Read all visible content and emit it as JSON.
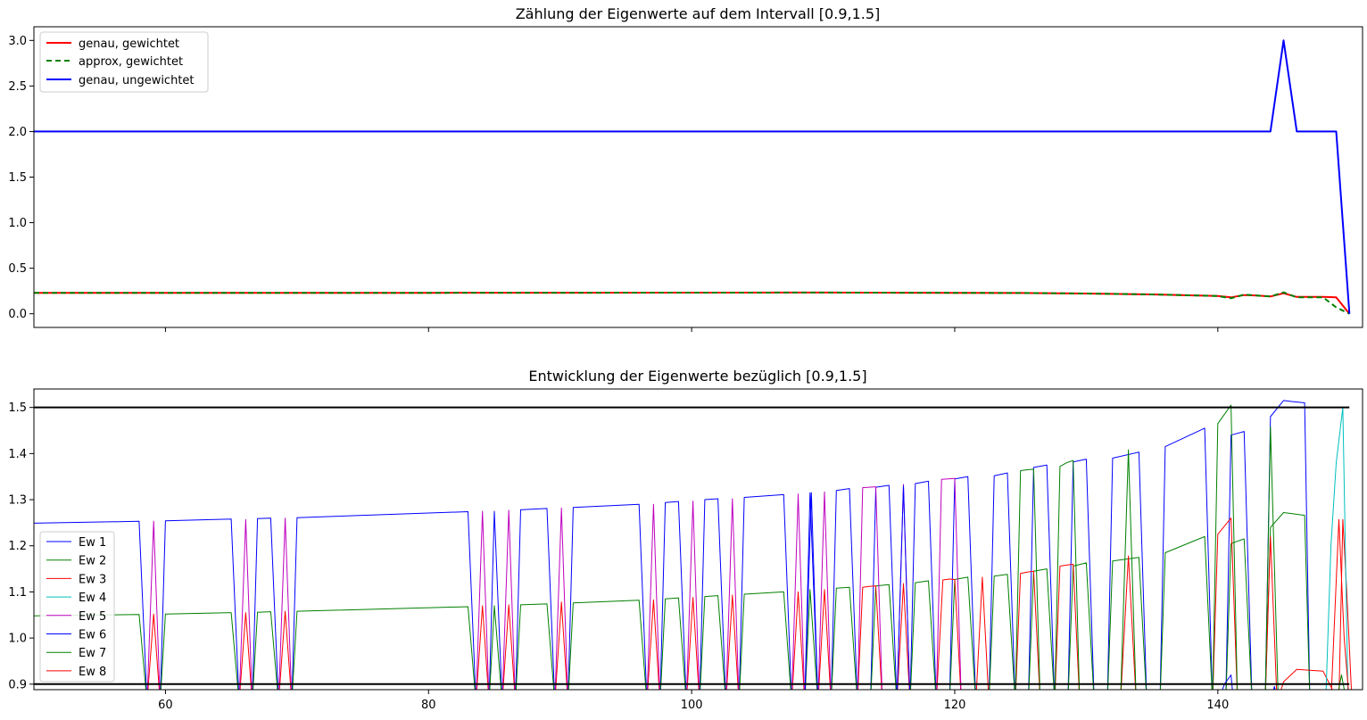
{
  "chart_data": [
    {
      "type": "line",
      "title": "Zählung der Eigenwerte auf dem Intervall [0.9,1.5]",
      "xlim": [
        50,
        151
      ],
      "ylim": [
        -0.15,
        3.15
      ],
      "yticks": [
        "0.0",
        "0.5",
        "1.0",
        "1.5",
        "2.0",
        "2.5",
        "3.0"
      ],
      "ytick_values": [
        0.0,
        0.5,
        1.0,
        1.5,
        2.0,
        2.5,
        3.0
      ],
      "x_tick_values": [
        60,
        80,
        100,
        120,
        140
      ],
      "show_x_labels": false,
      "legend": "top-left",
      "series": [
        {
          "name": "genau, gewichtet",
          "color": "#ff0000",
          "dash": "",
          "x": [
            50,
            60,
            80,
            100,
            110,
            120,
            125,
            130,
            135,
            140,
            141,
            142,
            143,
            144,
            145,
            146,
            147,
            148,
            149,
            150
          ],
          "y": [
            0.23,
            0.23,
            0.23,
            0.232,
            0.233,
            0.23,
            0.228,
            0.222,
            0.212,
            0.195,
            0.18,
            0.205,
            0.2,
            0.19,
            0.225,
            0.185,
            0.185,
            0.185,
            0.18,
            0.0
          ]
        },
        {
          "name": "approx, gewichtet",
          "color": "#008000",
          "dash": "6,4",
          "x": [
            50,
            60,
            80,
            100,
            110,
            120,
            125,
            130,
            135,
            140,
            141,
            142,
            143,
            144,
            145,
            146,
            147,
            148,
            149,
            150
          ],
          "y": [
            0.23,
            0.23,
            0.23,
            0.232,
            0.233,
            0.23,
            0.228,
            0.222,
            0.212,
            0.195,
            0.17,
            0.21,
            0.2,
            0.19,
            0.235,
            0.18,
            0.18,
            0.18,
            0.07,
            0.0
          ]
        },
        {
          "name": "genau, ungewichtet",
          "color": "#0000ff",
          "dash": "",
          "x": [
            50,
            144,
            145,
            146,
            149,
            150
          ],
          "y": [
            2.0,
            2.0,
            3.0,
            2.0,
            2.0,
            0.0
          ]
        }
      ]
    },
    {
      "type": "line",
      "title": "Entwicklung der Eigenwerte bezüglich [0.9,1.5]",
      "xlim": [
        50,
        151
      ],
      "ylim": [
        0.888,
        1.54
      ],
      "yticks": [
        "0.9",
        "1.0",
        "1.1",
        "1.2",
        "1.3",
        "1.4",
        "1.5"
      ],
      "ytick_values": [
        0.9,
        1.0,
        1.1,
        1.2,
        1.3,
        1.4,
        1.5
      ],
      "x_tick_values": [
        60,
        80,
        100,
        120,
        140
      ],
      "xticks": [
        "60",
        "80",
        "100",
        "120",
        "140"
      ],
      "show_x_labels": true,
      "legend": "bottom-left",
      "hlines": [
        0.9,
        1.5
      ],
      "series": [
        {
          "name": "Ew 1",
          "color": "#0000ff"
        },
        {
          "name": "Ew 2",
          "color": "#008000"
        },
        {
          "name": "Ew 3",
          "color": "#ff0000"
        },
        {
          "name": "Ew 4",
          "color": "#00bfbf"
        },
        {
          "name": "Ew 5",
          "color": "#bf00bf"
        },
        {
          "name": "Ew 6",
          "color": "#0000ff"
        },
        {
          "name": "Ew 7",
          "color": "#008000"
        },
        {
          "name": "Ew 8",
          "color": "#ff0000"
        }
      ],
      "trace_series": [
        {
          "color": "#0000ff",
          "x": [
            50,
            58,
            58.6,
            59.6,
            60,
            65,
            65.6,
            66.6,
            67,
            68,
            68.6,
            69.6,
            70,
            83,
            83.6,
            84.6,
            85,
            85.6,
            86.6,
            87,
            89,
            89.6,
            90.6,
            91,
            96,
            96.6,
            97.6,
            98,
            99,
            99.6,
            100.6,
            101,
            102,
            102.6,
            103.6,
            104,
            107,
            107.6,
            108.6,
            109,
            109.6,
            110.6,
            111,
            112,
            112.6,
            113.6,
            114,
            115,
            115.6,
            116.6,
            117,
            118,
            118.6,
            119.6,
            120,
            121,
            121.6,
            122.6,
            123,
            124,
            124.6,
            125.6,
            126,
            127,
            127.6,
            128.6,
            129,
            130,
            130.6,
            131.6,
            132,
            134,
            134.6,
            135.6,
            136,
            139,
            139.6,
            140.6,
            141,
            142,
            142.6,
            143.6,
            144,
            145,
            145.6,
            146.6,
            147,
            149,
            149.6
          ],
          "y": [
            1.249,
            1.253,
            0.86,
            0.86,
            1.254,
            1.258,
            0.86,
            0.86,
            1.259,
            1.26,
            0.86,
            0.86,
            1.261,
            1.274,
            0.86,
            0.86,
            1.275,
            0.86,
            0.86,
            1.278,
            1.281,
            0.86,
            0.86,
            1.283,
            1.29,
            0.86,
            0.86,
            1.294,
            1.296,
            0.86,
            0.86,
            1.3,
            1.302,
            0.86,
            0.86,
            1.305,
            1.311,
            0.86,
            0.86,
            1.315,
            0.86,
            0.86,
            1.32,
            1.324,
            0.86,
            0.86,
            1.327,
            1.331,
            0.86,
            0.86,
            1.335,
            1.34,
            0.86,
            0.86,
            1.345,
            1.35,
            0.86,
            0.86,
            1.352,
            1.358,
            0.86,
            0.86,
            1.37,
            1.375,
            0.86,
            0.86,
            1.382,
            1.388,
            0.86,
            0.86,
            1.39,
            1.403,
            0.86,
            0.86,
            1.415,
            1.455,
            0.86,
            0.86,
            1.44,
            1.448,
            0.86,
            0.86,
            1.48,
            1.515,
            1.513,
            1.51,
            0.86,
            0.86,
            0.86
          ]
        },
        {
          "color": "#008000",
          "x": [
            50,
            58,
            58.6,
            59.6,
            60,
            65,
            65.6,
            66.6,
            67,
            68,
            68.6,
            69.6,
            70,
            83,
            83.6,
            84.6,
            85,
            85.6,
            86.6,
            87,
            89,
            89.6,
            90.6,
            91,
            96,
            96.6,
            97.6,
            98,
            99,
            99.6,
            100.6,
            101,
            102,
            102.6,
            103.6,
            104,
            107,
            107.6,
            108.6,
            109,
            109.6,
            110.6,
            111,
            112,
            112.6,
            113.6,
            114,
            115,
            115.6,
            116.6,
            117,
            118,
            118.6,
            119.6,
            120,
            121,
            121.6,
            122.6,
            123,
            124,
            124.6,
            125.6,
            126,
            127,
            127.6,
            128.6,
            129,
            130,
            130.6,
            131.6,
            132,
            134,
            134.6,
            135.6,
            136,
            139,
            139.6,
            140.6,
            141,
            142,
            142.6,
            143.6,
            144,
            145,
            145.6,
            146.6,
            147,
            149,
            149.6
          ],
          "y": [
            1.048,
            1.051,
            0.86,
            0.86,
            1.052,
            1.055,
            0.86,
            0.86,
            1.056,
            1.057,
            0.86,
            0.86,
            1.058,
            1.068,
            0.86,
            0.86,
            1.07,
            0.86,
            0.86,
            1.072,
            1.074,
            0.86,
            0.86,
            1.076,
            1.082,
            0.86,
            0.86,
            1.085,
            1.087,
            0.86,
            0.86,
            1.09,
            1.092,
            0.86,
            0.86,
            1.095,
            1.1,
            0.86,
            0.86,
            1.105,
            0.86,
            0.86,
            1.108,
            1.11,
            0.86,
            0.86,
            1.113,
            1.116,
            0.86,
            0.86,
            1.12,
            1.124,
            0.86,
            0.86,
            1.127,
            1.132,
            0.86,
            0.86,
            1.134,
            1.138,
            0.86,
            0.86,
            1.145,
            1.15,
            0.86,
            0.86,
            1.156,
            1.163,
            0.86,
            0.86,
            1.167,
            1.175,
            0.86,
            0.86,
            1.185,
            1.22,
            0.86,
            0.86,
            1.205,
            1.215,
            0.86,
            0.86,
            1.24,
            1.272,
            1.27,
            1.266,
            0.86,
            0.86,
            0.86
          ]
        },
        {
          "color": "#ff0000",
          "x": [
            58.6,
            59.1,
            59.6,
            65.6,
            66.1,
            66.6,
            68.6,
            69.1,
            69.6,
            83.6,
            84.1,
            84.6,
            85.6,
            86.1,
            86.6,
            89.6,
            90.1,
            90.6,
            96.6,
            97.1,
            97.6,
            99.6,
            100.1,
            100.6,
            102.6,
            103.1,
            103.6,
            107.6,
            108.1,
            108.6,
            109.6,
            110.1,
            110.6,
            112.6,
            113,
            113.5,
            114,
            114.5,
            115.6,
            116.1,
            116.6,
            118.6,
            119.1,
            119.6,
            120,
            120.5,
            121.6,
            122.1,
            122.6,
            124.6,
            125,
            125.5,
            126,
            126.5,
            127.6,
            128,
            128.5,
            129,
            129.5,
            130.6,
            131.6,
            132.6,
            133.2,
            133.8,
            139.6,
            140,
            141,
            141.5,
            143.6,
            144,
            144.5,
            145,
            146,
            148,
            149.2,
            149.5,
            149.8,
            150.2
          ],
          "y": [
            0.86,
            1.052,
            0.86,
            0.86,
            1.055,
            0.86,
            0.86,
            1.058,
            0.86,
            0.86,
            1.07,
            0.86,
            0.86,
            1.072,
            0.86,
            0.86,
            1.078,
            0.86,
            0.86,
            1.083,
            0.86,
            0.86,
            1.088,
            0.86,
            0.86,
            1.093,
            0.86,
            0.86,
            1.1,
            0.86,
            0.86,
            1.105,
            0.86,
            0.86,
            1.11,
            1.112,
            1.113,
            0.86,
            0.86,
            1.118,
            0.86,
            0.86,
            1.126,
            1.128,
            1.127,
            0.86,
            0.86,
            1.132,
            0.86,
            0.86,
            1.14,
            1.143,
            1.145,
            0.86,
            0.86,
            1.156,
            1.158,
            1.16,
            0.86,
            0.86,
            0.86,
            0.86,
            1.178,
            0.86,
            0.86,
            1.225,
            1.26,
            0.86,
            0.86,
            1.22,
            0.86,
            0.905,
            0.932,
            0.928,
            0.86,
            1.257,
            1.1,
            0.86
          ]
        },
        {
          "color": "#00bfbf",
          "x": [
            148.2,
            148.6,
            149,
            149.5,
            149.9
          ],
          "y": [
            0.86,
            1.2,
            1.38,
            1.5,
            0.86
          ]
        },
        {
          "color": "#bf00bf",
          "x": [
            58.6,
            59.1,
            59.6,
            65.6,
            66.1,
            66.6,
            68.6,
            69.1,
            69.6,
            83.6,
            84.1,
            84.6,
            85.6,
            86.1,
            86.6,
            89.6,
            90.1,
            90.6,
            96.6,
            97.1,
            97.6,
            99.6,
            100.1,
            100.6,
            102.6,
            103.1,
            103.6,
            107.6,
            108.1,
            108.6,
            109.6,
            110.1,
            110.6,
            112.6,
            113,
            114,
            114.5,
            115.6,
            116.1,
            116.6,
            118.6,
            119,
            120,
            120.5
          ],
          "y": [
            0.86,
            1.253,
            0.86,
            0.86,
            1.257,
            0.86,
            0.86,
            1.26,
            0.86,
            0.86,
            1.275,
            0.86,
            0.86,
            1.277,
            0.86,
            0.86,
            1.282,
            0.86,
            0.86,
            1.29,
            0.86,
            0.86,
            1.297,
            0.86,
            0.86,
            1.302,
            0.86,
            0.86,
            1.312,
            0.86,
            0.86,
            1.317,
            0.86,
            0.86,
            1.326,
            1.328,
            0.86,
            0.86,
            1.333,
            0.86,
            0.86,
            1.344,
            1.346,
            0.86
          ]
        },
        {
          "color": "#0000ff",
          "x": [
            108.6,
            109.1,
            109.6,
            115.6,
            116.1,
            116.6,
            140,
            140.5,
            141,
            141.2,
            144,
            144.3,
            144.6,
            149.6,
            150
          ],
          "y": [
            0.86,
            1.315,
            0.86,
            0.86,
            1.33,
            0.86,
            0.86,
            0.9,
            0.92,
            0.86,
            0.86,
            0.895,
            0.86,
            0.86,
            0.86
          ]
        },
        {
          "color": "#008000",
          "x": [
            124.6,
            125,
            125.5,
            126,
            126.5,
            127.6,
            128,
            128.5,
            129,
            129.5,
            132.6,
            133.2,
            133.8,
            139.6,
            140,
            141,
            141.5,
            143.6,
            144,
            144.6,
            149,
            149.4,
            149.8,
            150.2
          ],
          "y": [
            0.86,
            1.363,
            1.365,
            1.366,
            0.86,
            0.86,
            1.372,
            1.38,
            1.385,
            0.86,
            0.86,
            1.408,
            0.86,
            0.86,
            1.465,
            1.505,
            0.86,
            0.86,
            1.458,
            0.86,
            0.86,
            0.92,
            0.86,
            0.86
          ]
        },
        {
          "color": "#ff0000",
          "x": [
            148.6,
            149.2,
            149.6,
            150
          ],
          "y": [
            0.86,
            1.257,
            1.0,
            0.86
          ]
        }
      ]
    }
  ]
}
